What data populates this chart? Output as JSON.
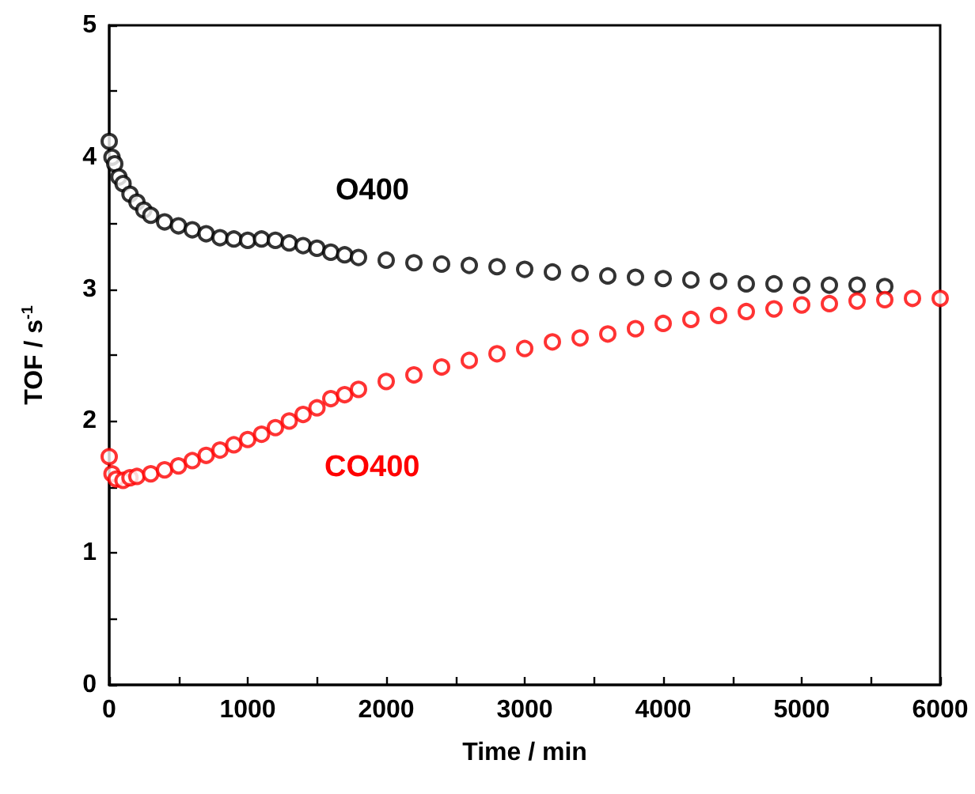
{
  "chart_data": {
    "type": "scatter",
    "xlabel": "Time / min",
    "ylabel": "TOF / s$^{-1}$",
    "xlim": [
      0,
      6000
    ],
    "ylim": [
      0,
      5
    ],
    "xticks": [
      0,
      {
        "value": 500,
        "label": null
      },
      1000,
      {
        "value": 1500,
        "label": null
      },
      2000,
      {
        "value": 2500,
        "label": null
      },
      3000,
      {
        "value": 3500,
        "label": null
      },
      4000,
      {
        "value": 4500,
        "label": null
      },
      5000,
      {
        "value": 5500,
        "label": null
      },
      6000
    ],
    "yticks": [
      0,
      {
        "value": 0.5,
        "label": null
      },
      1,
      {
        "value": 1.5,
        "label": null
      },
      2,
      {
        "value": 2.5,
        "label": null
      },
      3,
      {
        "value": 3.5,
        "label": null
      },
      4,
      {
        "value": 4.5,
        "label": null
      },
      5
    ],
    "marker": "circle",
    "legend": false,
    "grid": false,
    "series": [
      {
        "name": "O400",
        "color": "#000000",
        "x": [
          0,
          20,
          40,
          70,
          100,
          150,
          200,
          250,
          300,
          400,
          500,
          600,
          700,
          800,
          900,
          1000,
          1100,
          1200,
          1300,
          1400,
          1500,
          1600,
          1700,
          1800,
          2000,
          2200,
          2400,
          2600,
          2800,
          3000,
          3200,
          3400,
          3600,
          3800,
          4000,
          4200,
          4400,
          4600,
          4800,
          5000,
          5200,
          5400,
          5600
        ],
        "values": [
          4.12,
          4.0,
          3.95,
          3.85,
          3.8,
          3.72,
          3.66,
          3.6,
          3.56,
          3.51,
          3.48,
          3.45,
          3.42,
          3.39,
          3.38,
          3.37,
          3.38,
          3.37,
          3.35,
          3.33,
          3.31,
          3.28,
          3.26,
          3.24,
          3.22,
          3.2,
          3.19,
          3.18,
          3.17,
          3.15,
          3.13,
          3.12,
          3.1,
          3.09,
          3.08,
          3.07,
          3.06,
          3.04,
          3.04,
          3.03,
          3.03,
          3.03,
          3.02
        ]
      },
      {
        "name": "CO400",
        "color": "#ff0000",
        "x": [
          0,
          20,
          50,
          100,
          150,
          200,
          300,
          400,
          500,
          600,
          700,
          800,
          900,
          1000,
          1100,
          1200,
          1300,
          1400,
          1500,
          1600,
          1700,
          1800,
          2000,
          2200,
          2400,
          2600,
          2800,
          3000,
          3200,
          3400,
          3600,
          3800,
          4000,
          4200,
          4400,
          4600,
          4800,
          5000,
          5200,
          5400,
          5600,
          5800,
          6000
        ],
        "values": [
          1.73,
          1.6,
          1.56,
          1.55,
          1.57,
          1.58,
          1.6,
          1.63,
          1.66,
          1.7,
          1.74,
          1.78,
          1.82,
          1.86,
          1.9,
          1.95,
          2.0,
          2.05,
          2.1,
          2.17,
          2.2,
          2.24,
          2.3,
          2.35,
          2.41,
          2.46,
          2.51,
          2.55,
          2.6,
          2.63,
          2.66,
          2.7,
          2.74,
          2.77,
          2.8,
          2.83,
          2.85,
          2.88,
          2.89,
          2.91,
          2.92,
          2.93,
          2.93
        ]
      }
    ]
  }
}
